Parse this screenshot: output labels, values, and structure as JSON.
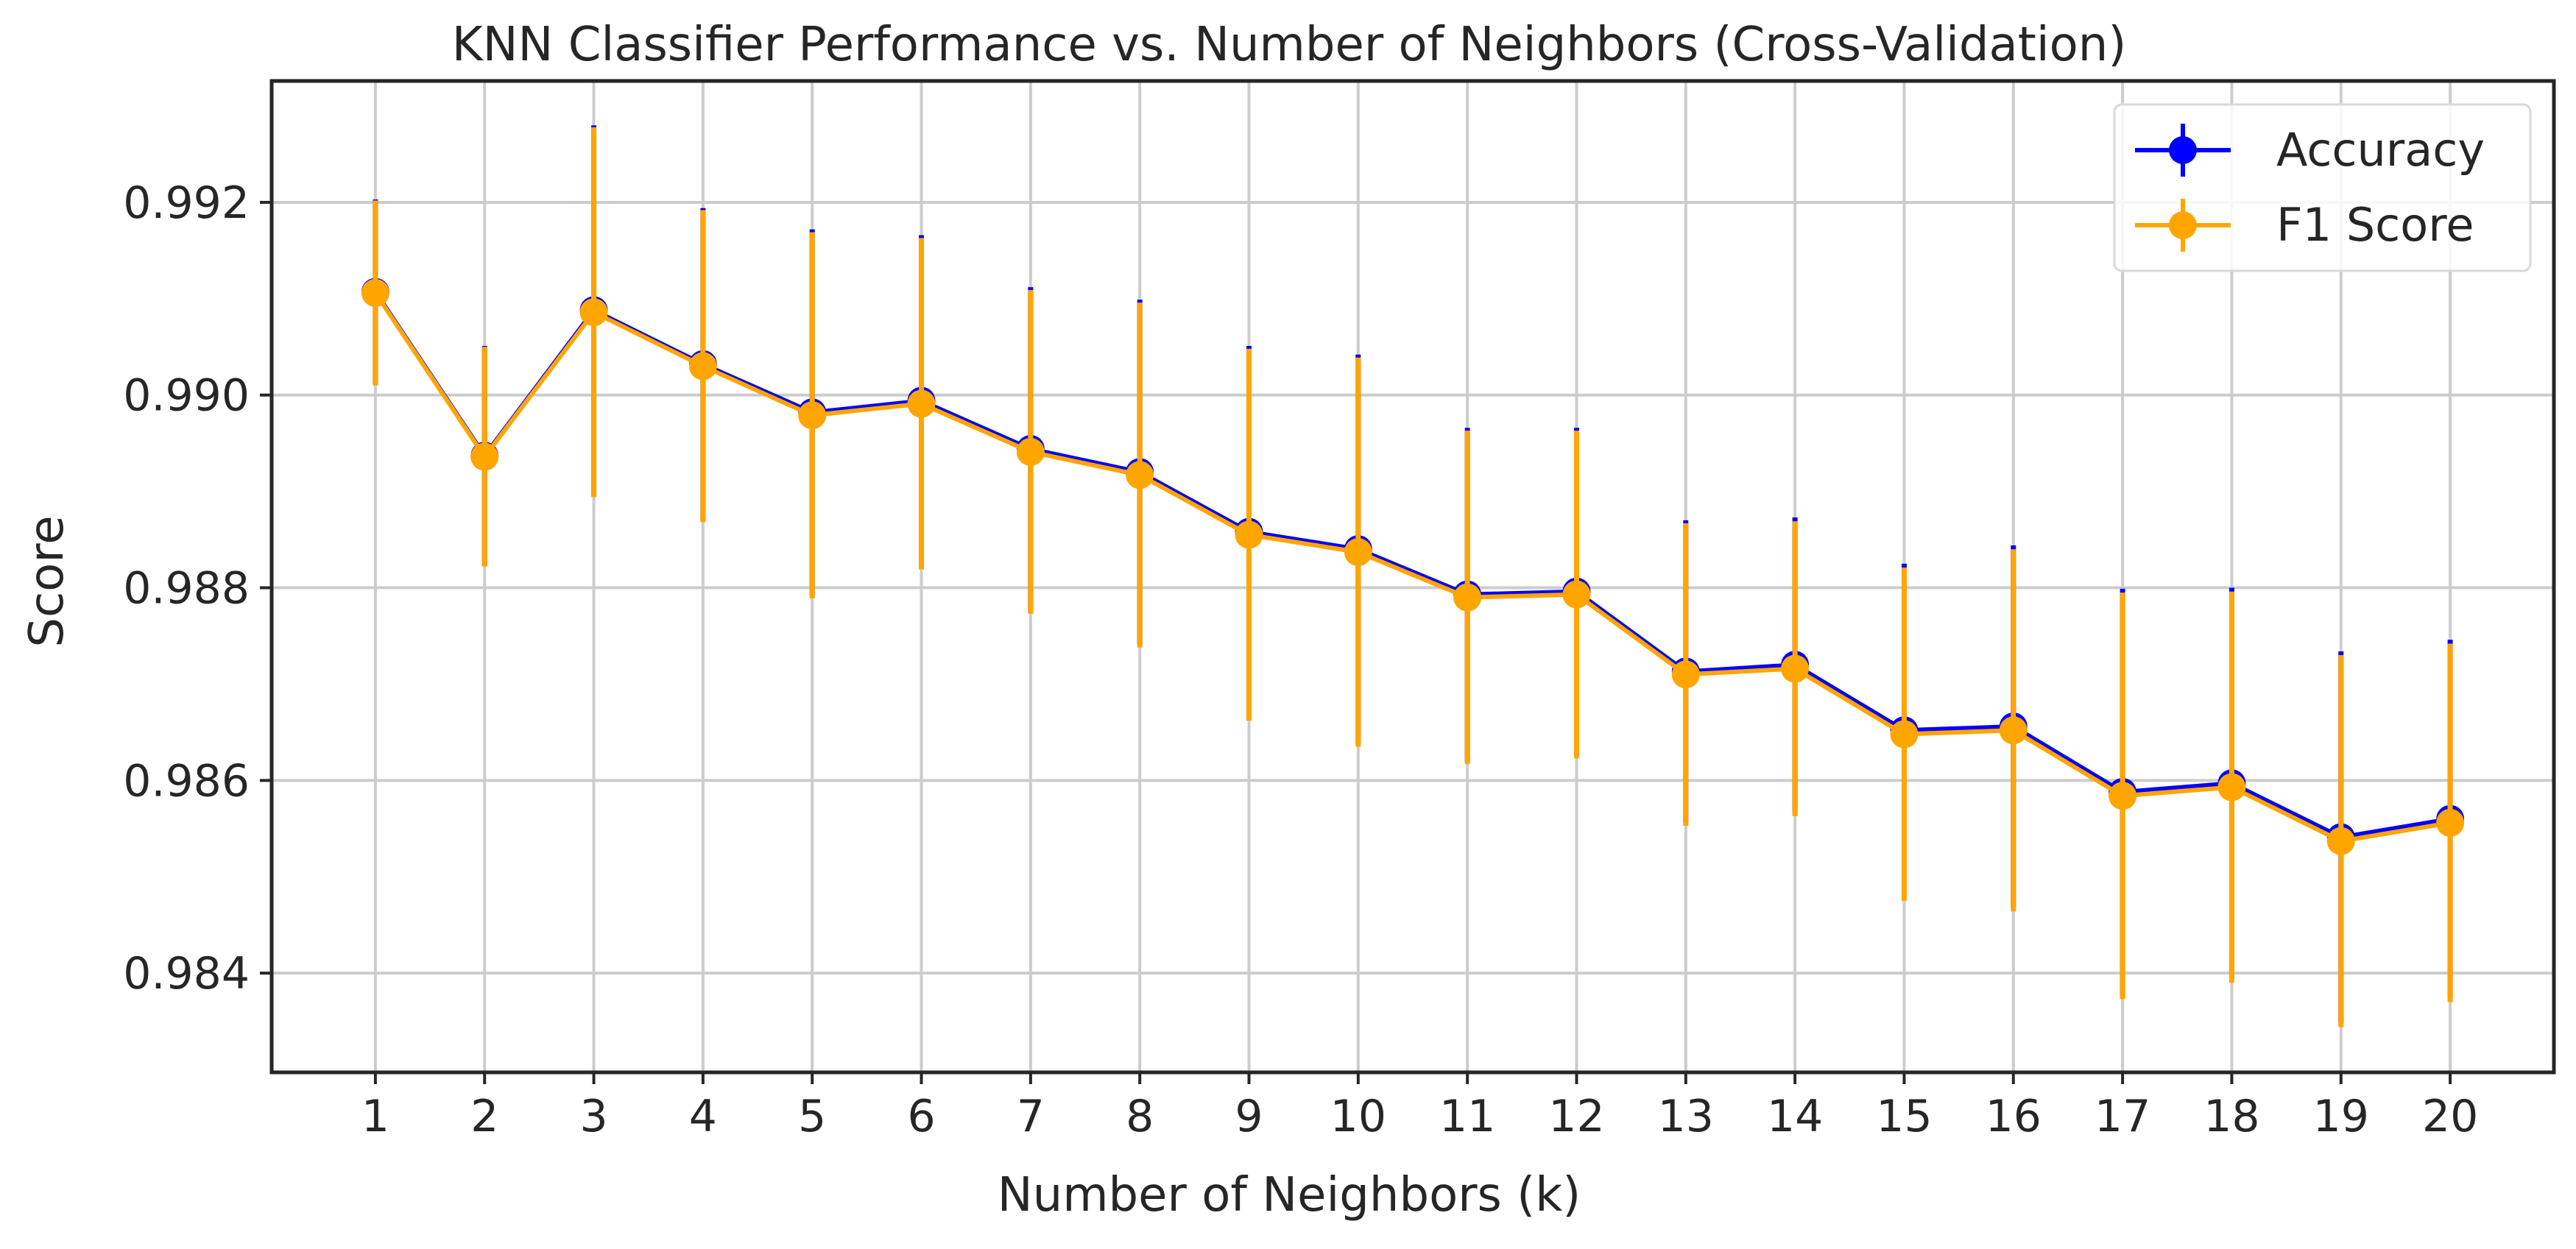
{
  "chart_data": {
    "type": "line",
    "title": "KNN Classifier Performance vs. Number of Neighbors (Cross-Validation)",
    "xlabel": "Number of Neighbors (k)",
    "ylabel": "Score",
    "x": [
      1,
      2,
      3,
      4,
      5,
      6,
      7,
      8,
      9,
      10,
      11,
      12,
      13,
      14,
      15,
      16,
      17,
      18,
      19,
      20
    ],
    "xlim": [
      0.05,
      20.95
    ],
    "ylim": [
      0.98297,
      0.99326
    ],
    "yticks": [
      0.984,
      0.986,
      0.988,
      0.99,
      0.992
    ],
    "ytick_labels": [
      "0.984",
      "0.986",
      "0.988",
      "0.990",
      "0.992"
    ],
    "xtick_labels": [
      "1",
      "2",
      "3",
      "4",
      "5",
      "6",
      "7",
      "8",
      "9",
      "10",
      "11",
      "12",
      "13",
      "14",
      "15",
      "16",
      "17",
      "18",
      "19",
      "20"
    ],
    "grid": true,
    "legend_position": "top-right",
    "series": [
      {
        "name": "Accuracy",
        "color": "#0000ff",
        "values": [
          0.99107,
          0.98937,
          0.99088,
          0.99032,
          0.98982,
          0.98994,
          0.98944,
          0.9892,
          0.98858,
          0.9884,
          0.98793,
          0.98796,
          0.98713,
          0.9872,
          0.98652,
          0.98656,
          0.98588,
          0.98597,
          0.98541,
          0.9856
        ],
        "errors": [
          0.00096,
          0.00114,
          0.00192,
          0.00162,
          0.0019,
          0.00172,
          0.00168,
          0.00179,
          0.00193,
          0.00202,
          0.00173,
          0.0017,
          0.00157,
          0.00153,
          0.00173,
          0.00188,
          0.00211,
          0.00203,
          0.00193,
          0.00186
        ]
      },
      {
        "name": "F1 Score",
        "color": "#ffa500",
        "values": [
          0.99106,
          0.98936,
          0.99086,
          0.9903,
          0.98979,
          0.98991,
          0.98941,
          0.98917,
          0.98855,
          0.98837,
          0.9879,
          0.98793,
          0.9871,
          0.98716,
          0.98648,
          0.98652,
          0.98584,
          0.98593,
          0.98537,
          0.98556
        ],
        "errors": [
          0.00096,
          0.00114,
          0.00192,
          0.00162,
          0.0019,
          0.00172,
          0.00168,
          0.00179,
          0.00193,
          0.00202,
          0.00173,
          0.0017,
          0.00157,
          0.00153,
          0.00173,
          0.00188,
          0.00211,
          0.00203,
          0.00193,
          0.00186
        ]
      }
    ]
  }
}
